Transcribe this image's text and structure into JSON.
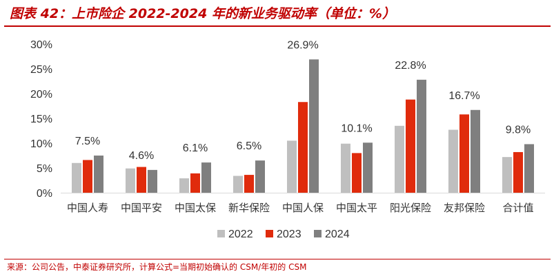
{
  "header": {
    "title": "图表 42：上市险企 2022-2024 年的新业务驱动率（单位：%）"
  },
  "footer": {
    "source": "来源：公司公告，中泰证券研究所，计算公式=当期初始确认的 CSM/年初的 CSM"
  },
  "chart_data": {
    "type": "bar",
    "title": "",
    "xlabel": "",
    "ylabel": "",
    "ylim": [
      0,
      30
    ],
    "yticks": [
      0,
      5,
      10,
      15,
      20,
      25,
      30
    ],
    "ytick_labels": [
      "0%",
      "5%",
      "10%",
      "15%",
      "20%",
      "25%",
      "30%"
    ],
    "grid": false,
    "legend_position": "bottom",
    "categories": [
      "中国人寿",
      "中国平安",
      "中国太保",
      "新华保险",
      "中国人保",
      "中国太平",
      "阳光保险",
      "友邦保险",
      "合计值"
    ],
    "series": [
      {
        "name": "2022",
        "color": "#bfbfbf",
        "values": [
          6.0,
          4.9,
          2.9,
          3.4,
          10.5,
          9.9,
          13.5,
          12.7,
          7.2
        ]
      },
      {
        "name": "2023",
        "color": "#e02b0c",
        "values": [
          6.6,
          5.2,
          3.9,
          3.6,
          18.3,
          8.0,
          18.8,
          15.8,
          8.2
        ]
      },
      {
        "name": "2024",
        "color": "#7f7f7f",
        "values": [
          7.5,
          4.6,
          6.1,
          6.5,
          26.9,
          10.1,
          22.8,
          16.7,
          9.8
        ]
      }
    ],
    "data_labels": [
      "7.5%",
      "4.6%",
      "6.1%",
      "6.5%",
      "26.9%",
      "10.1%",
      "22.8%",
      "16.7%",
      "9.8%"
    ]
  }
}
